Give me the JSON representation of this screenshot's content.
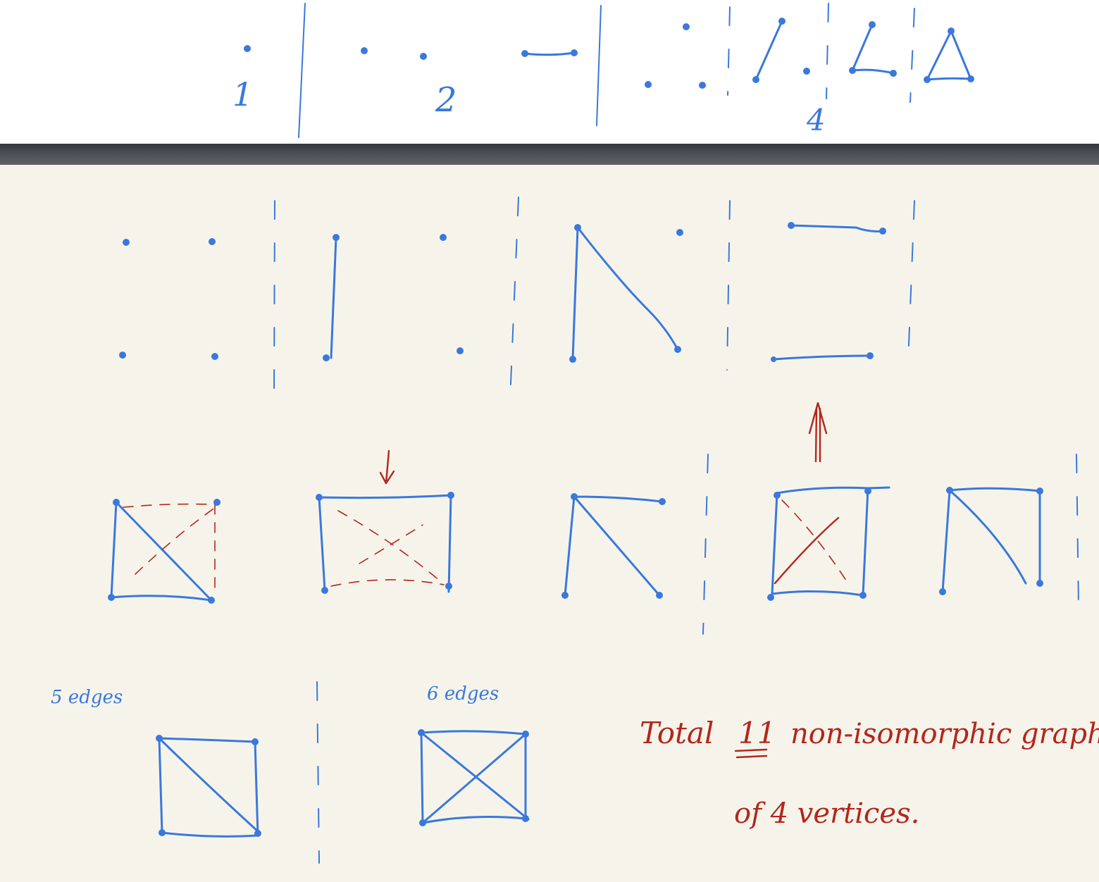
{
  "top": {
    "count_labels": [
      "1",
      "2",
      "4"
    ]
  },
  "notes": {
    "five_edges": "5 edges",
    "six_edges": "6 edges",
    "total_line1_prefix": "Total",
    "total_count": "11",
    "total_line1_suffix": "non-isomorphic graphs",
    "total_line2": "of 4 vertices."
  },
  "colors": {
    "ink_blue": "#3a78dc",
    "ink_red": "#b3261e",
    "paper": "#f6f4ea",
    "divider": "#4b4e54"
  }
}
